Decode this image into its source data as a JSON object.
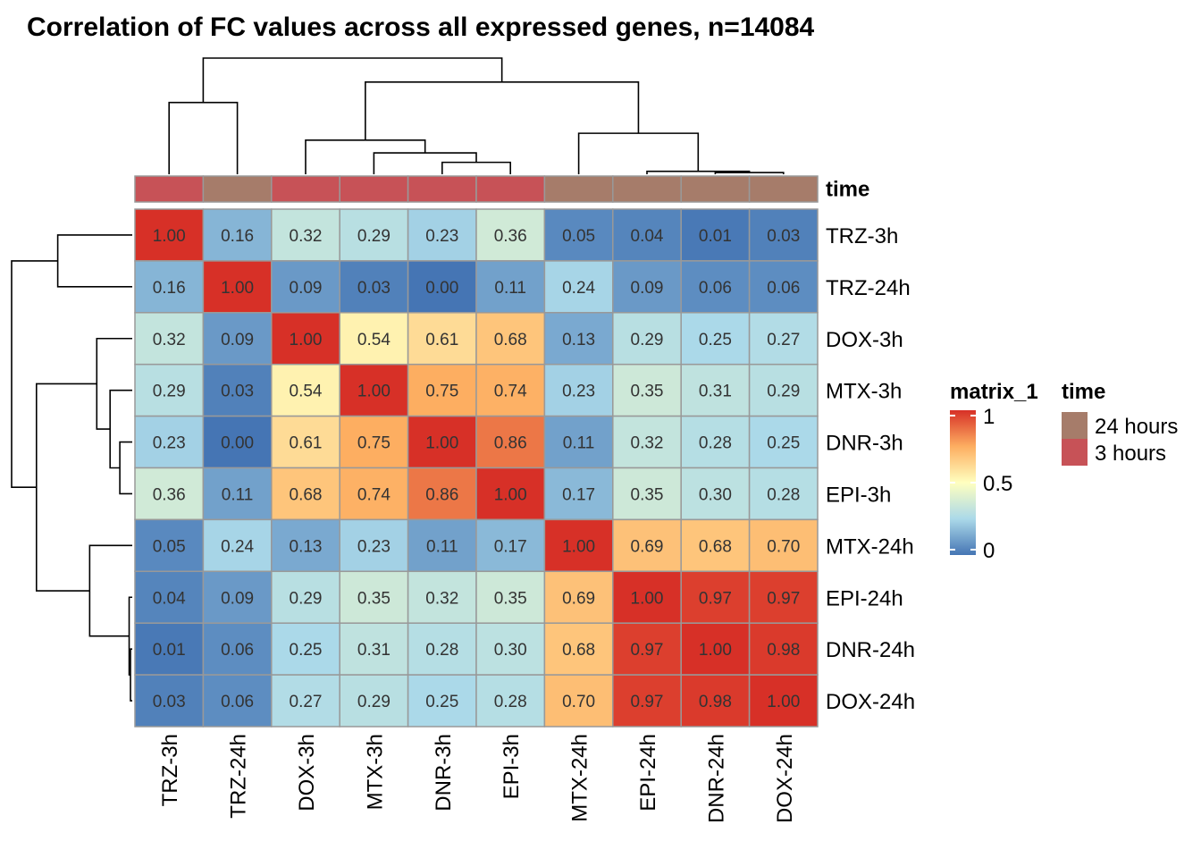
{
  "chart_data": {
    "type": "heatmap",
    "title": "Correlation of FC values across all expressed genes, n=14084",
    "columns": [
      "TRZ-3h",
      "TRZ-24h",
      "DOX-3h",
      "MTX-3h",
      "DNR-3h",
      "EPI-3h",
      "MTX-24h",
      "EPI-24h",
      "DNR-24h",
      "DOX-24h"
    ],
    "rows": [
      "TRZ-3h",
      "TRZ-24h",
      "DOX-3h",
      "MTX-3h",
      "DNR-3h",
      "EPI-3h",
      "MTX-24h",
      "EPI-24h",
      "DNR-24h",
      "DOX-24h"
    ],
    "values": [
      [
        1.0,
        0.16,
        0.32,
        0.29,
        0.23,
        0.36,
        0.05,
        0.04,
        0.01,
        0.03
      ],
      [
        0.16,
        1.0,
        0.09,
        0.03,
        0.0,
        0.11,
        0.24,
        0.09,
        0.06,
        0.06
      ],
      [
        0.32,
        0.09,
        1.0,
        0.54,
        0.61,
        0.68,
        0.13,
        0.29,
        0.25,
        0.27
      ],
      [
        0.29,
        0.03,
        0.54,
        1.0,
        0.75,
        0.74,
        0.23,
        0.35,
        0.31,
        0.29
      ],
      [
        0.23,
        0.0,
        0.61,
        0.75,
        1.0,
        0.86,
        0.11,
        0.32,
        0.28,
        0.25
      ],
      [
        0.36,
        0.11,
        0.68,
        0.74,
        0.86,
        1.0,
        0.17,
        0.35,
        0.3,
        0.28
      ],
      [
        0.05,
        0.24,
        0.13,
        0.23,
        0.11,
        0.17,
        1.0,
        0.69,
        0.68,
        0.7
      ],
      [
        0.04,
        0.09,
        0.29,
        0.35,
        0.32,
        0.35,
        0.69,
        1.0,
        0.97,
        0.97
      ],
      [
        0.01,
        0.06,
        0.25,
        0.31,
        0.28,
        0.3,
        0.68,
        0.97,
        1.0,
        0.98
      ],
      [
        0.03,
        0.06,
        0.27,
        0.29,
        0.25,
        0.28,
        0.7,
        0.97,
        0.98,
        1.0
      ]
    ],
    "annotation": {
      "name": "time",
      "values": [
        "3 hours",
        "24 hours",
        "3 hours",
        "3 hours",
        "3 hours",
        "3 hours",
        "24 hours",
        "24 hours",
        "24 hours",
        "24 hours"
      ],
      "levels": [
        {
          "label": "24 hours",
          "color": "#A67C6A"
        },
        {
          "label": "3 hours",
          "color": "#C75257"
        }
      ]
    },
    "color_scale": {
      "name": "matrix_1",
      "range": [
        0,
        1
      ],
      "ticks": [
        "1",
        "0.5",
        "0"
      ],
      "stops": [
        {
          "value": 0.0,
          "color": "#4575B4"
        },
        {
          "value": 0.25,
          "color": "#ABD9E9"
        },
        {
          "value": 0.5,
          "color": "#FFFFBF"
        },
        {
          "value": 0.75,
          "color": "#FDAE61"
        },
        {
          "value": 1.0,
          "color": "#D73027"
        }
      ]
    },
    "dendrogram": {
      "order": [
        0,
        1,
        2,
        3,
        4,
        5,
        6,
        7,
        8,
        9
      ],
      "merges": [
        {
          "a": 8,
          "b": 9,
          "h": 0.02
        },
        {
          "a": 7,
          "b": "m0",
          "h": 0.035
        },
        {
          "a": 4,
          "b": 5,
          "h": 0.14
        },
        {
          "a": 3,
          "b": "m2",
          "h": 0.25
        },
        {
          "a": 2,
          "b": "m3",
          "h": 0.4
        },
        {
          "a": 6,
          "b": "m1",
          "h": 0.48
        },
        {
          "a": 0,
          "b": 1,
          "h": 0.84
        },
        {
          "a": "m4",
          "b": "m5",
          "h": 1.08
        },
        {
          "a": "m6",
          "b": "m7",
          "h": 1.36
        }
      ]
    }
  }
}
